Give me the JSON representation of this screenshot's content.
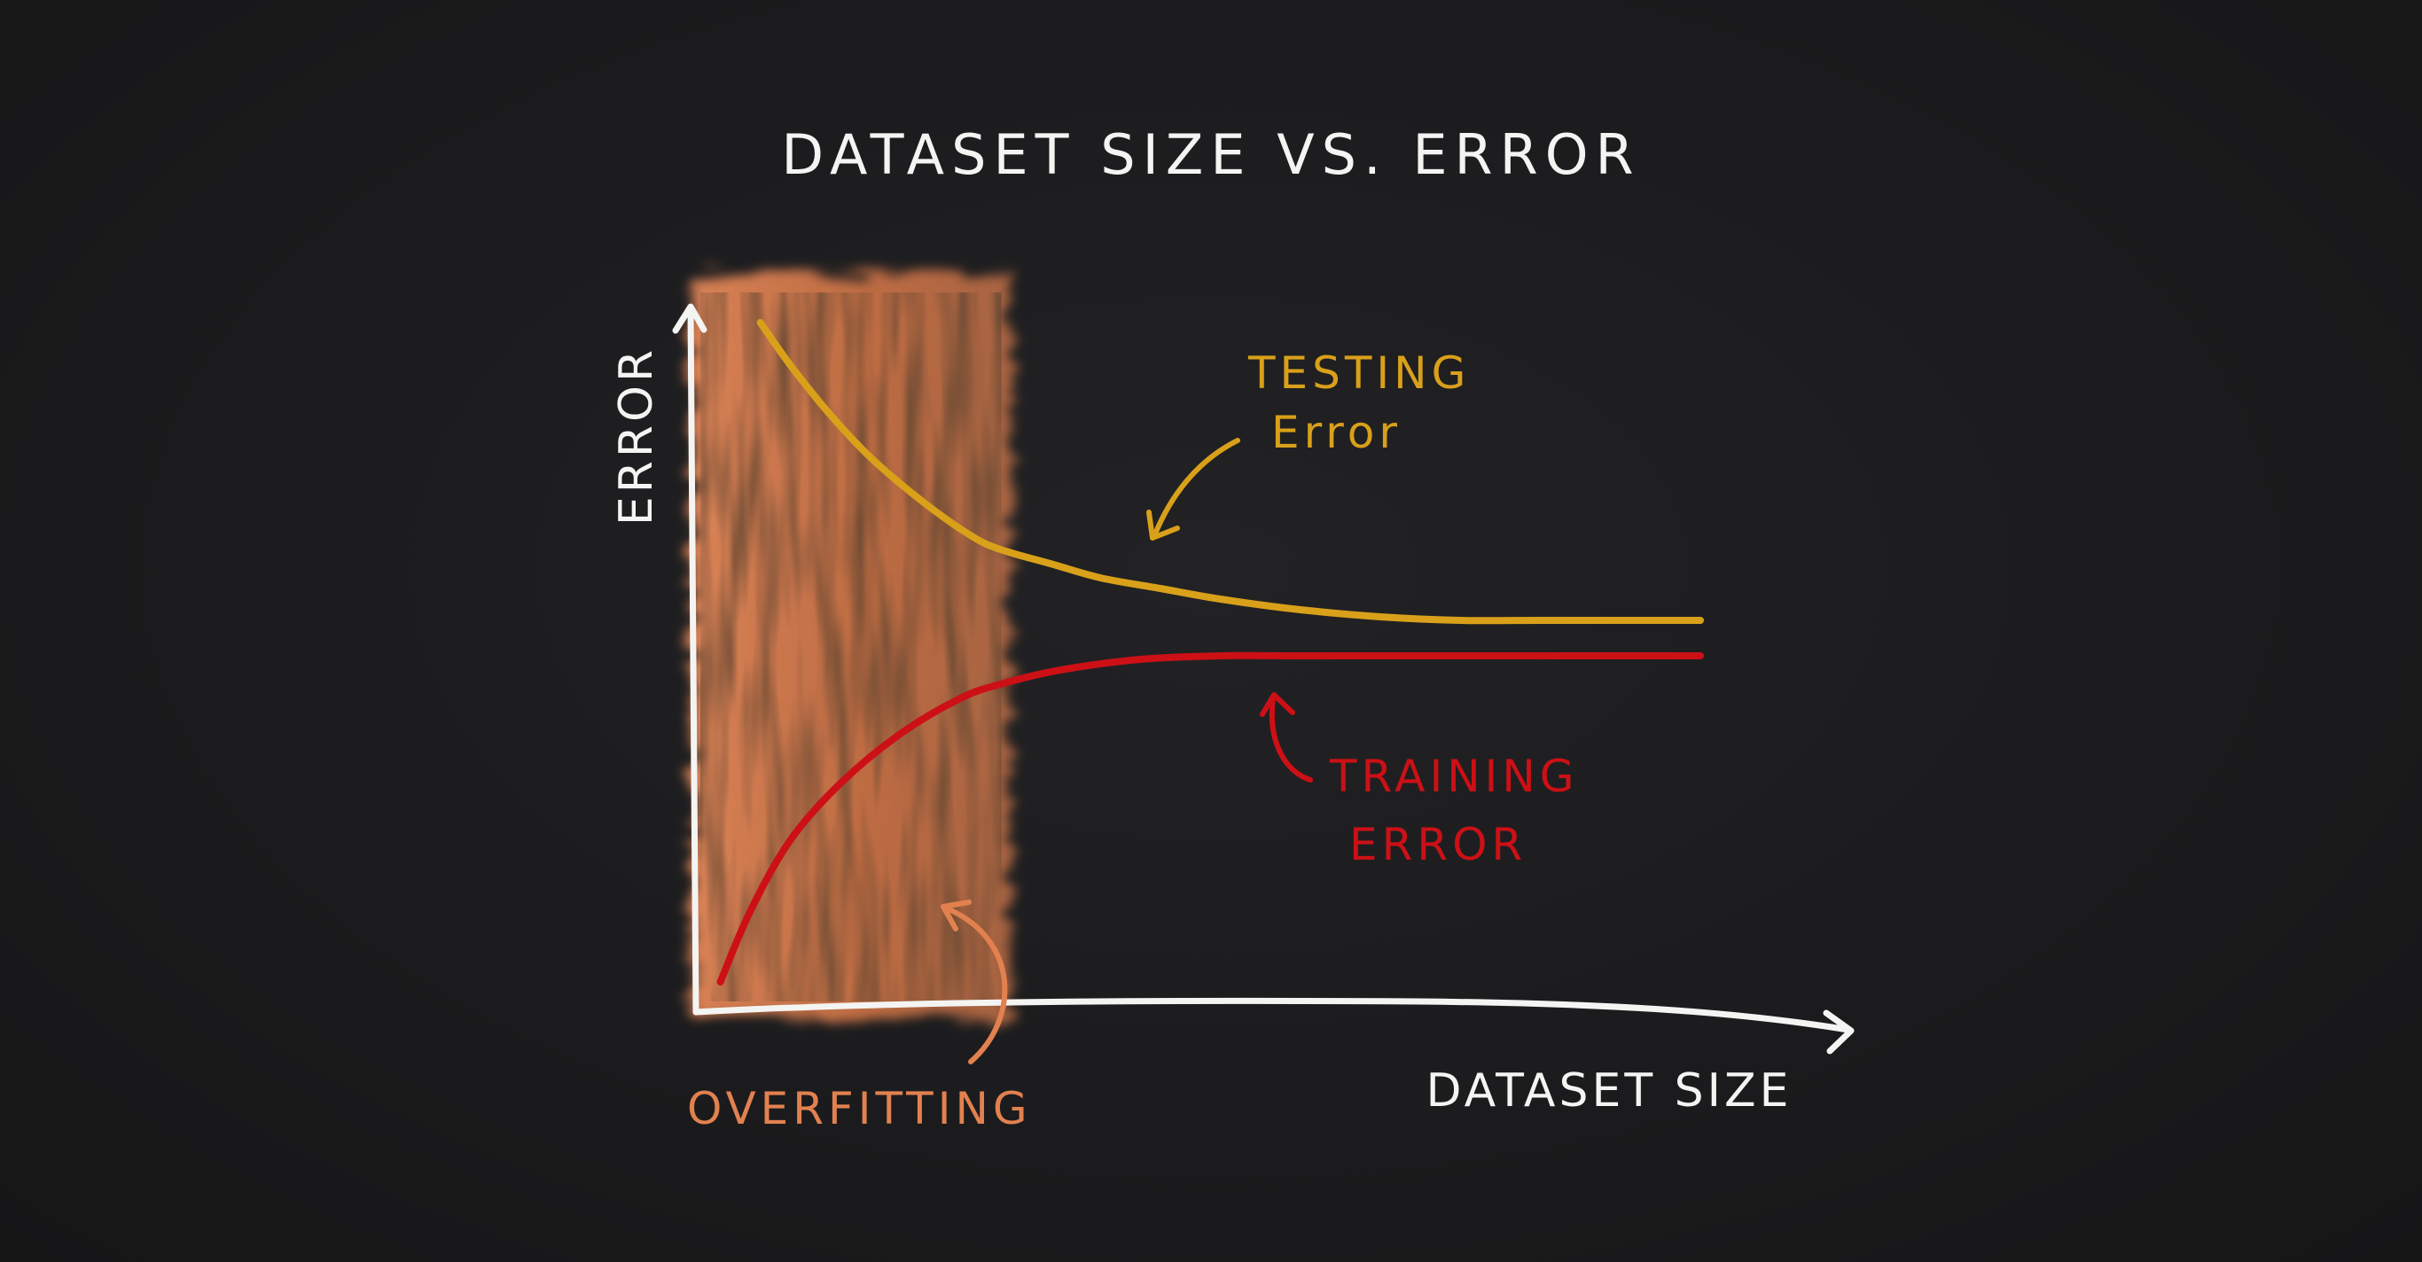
{
  "chart_data": {
    "type": "line",
    "title": "DATASET SIZE VS. ERROR",
    "xlabel": "DATASET SIZE",
    "ylabel": "ERROR",
    "ylim": [
      0,
      1
    ],
    "xlim": [
      0,
      1
    ],
    "grid": false,
    "series": [
      {
        "name": "TESTING Error",
        "color": "#d9a01a",
        "x": [
          0.06,
          0.09,
          0.13,
          0.17,
          0.22,
          0.27,
          0.3,
          0.35,
          0.4,
          0.46,
          0.52,
          0.6,
          0.68,
          0.76,
          0.84,
          0.92,
          1.0
        ],
        "y": [
          0.97,
          0.91,
          0.84,
          0.78,
          0.72,
          0.67,
          0.65,
          0.63,
          0.61,
          0.595,
          0.58,
          0.565,
          0.555,
          0.55,
          0.55,
          0.55,
          0.55
        ]
      },
      {
        "name": "TRAINING ERROR",
        "color": "#cc1016",
        "x": [
          0.02,
          0.05,
          0.09,
          0.14,
          0.2,
          0.26,
          0.3,
          0.36,
          0.44,
          0.52,
          0.6,
          0.7,
          0.8,
          0.9,
          1.0
        ],
        "y": [
          0.04,
          0.14,
          0.24,
          0.32,
          0.39,
          0.44,
          0.46,
          0.48,
          0.495,
          0.5,
          0.5,
          0.5,
          0.5,
          0.5,
          0.5
        ]
      }
    ],
    "shaded_region": {
      "label": "OVERFITTING",
      "x_range": [
        0.0,
        0.31
      ],
      "color": "#e2814f"
    },
    "annotations": [
      {
        "text_lines": [
          "TESTING",
          "Error"
        ],
        "color": "#d9a01a"
      },
      {
        "text_lines": [
          "TRAINING",
          "ERROR"
        ],
        "color": "#cc1016"
      },
      {
        "text_lines": [
          "OVERFITTING"
        ],
        "color": "#e2814f"
      }
    ]
  }
}
